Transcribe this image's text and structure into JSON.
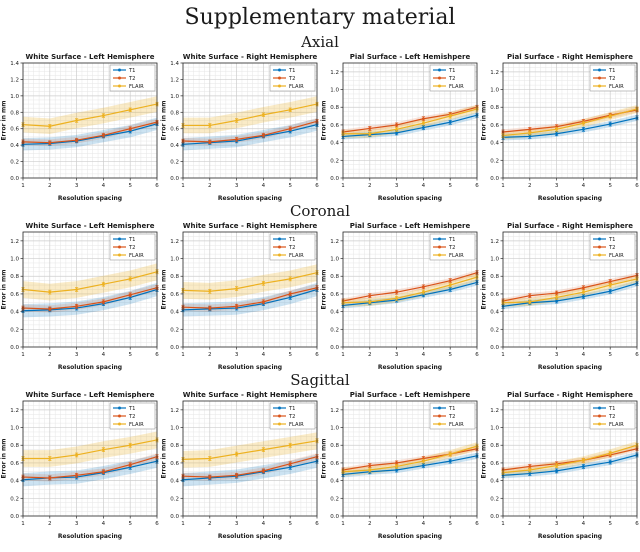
{
  "title": "Supplementary material",
  "rows": [
    {
      "label": "Axial"
    },
    {
      "label": "Coronal"
    },
    {
      "label": "Sagittal"
    }
  ],
  "legend": [
    "T1",
    "T2",
    "FLAIR"
  ],
  "colors": {
    "T1": "#0072BD",
    "T2": "#D95319",
    "FLAIR": "#EDB120"
  },
  "grid_colors": {
    "minor": "#e6e6e6",
    "major": "#cdcdcd",
    "spine": "#2b2b2b"
  },
  "axis": {
    "xlabel": "Resolution spacing",
    "ylabel": "Error in mm",
    "x_ticks": [
      1,
      2,
      3,
      4,
      5,
      6
    ],
    "ytick_step": 0.2
  },
  "chart_data": [
    {
      "type": "line",
      "row": 0,
      "col": 0,
      "title": "White Surface - Left Hemisphere",
      "xlabel": "Resolution spacing",
      "ylabel": "Error in mm",
      "x": [
        1,
        2,
        3,
        4,
        5,
        6
      ],
      "ylim": [
        0,
        1.4
      ],
      "series": [
        {
          "name": "T1",
          "values": [
            0.41,
            0.42,
            0.45,
            0.51,
            0.57,
            0.66
          ],
          "band": 0.075
        },
        {
          "name": "T2",
          "values": [
            0.44,
            0.43,
            0.46,
            0.52,
            0.6,
            0.68
          ],
          "band": 0.04
        },
        {
          "name": "FLAIR",
          "values": [
            0.65,
            0.63,
            0.7,
            0.76,
            0.83,
            0.9
          ],
          "band": 0.095
        }
      ]
    },
    {
      "type": "line",
      "row": 0,
      "col": 1,
      "title": "White Surface - Right Hemisphere",
      "xlabel": "Resolution spacing",
      "ylabel": "Error in mm",
      "x": [
        1,
        2,
        3,
        4,
        5,
        6
      ],
      "ylim": [
        0,
        1.4
      ],
      "series": [
        {
          "name": "T1",
          "values": [
            0.41,
            0.43,
            0.45,
            0.51,
            0.57,
            0.65
          ],
          "band": 0.075
        },
        {
          "name": "T2",
          "values": [
            0.45,
            0.44,
            0.47,
            0.52,
            0.6,
            0.69
          ],
          "band": 0.04
        },
        {
          "name": "FLAIR",
          "values": [
            0.64,
            0.64,
            0.7,
            0.77,
            0.83,
            0.9
          ],
          "band": 0.095
        }
      ]
    },
    {
      "type": "line",
      "row": 0,
      "col": 2,
      "title": "Pial Surface - Left Hemishpere",
      "xlabel": "Resolution spacing",
      "ylabel": "Error in mm",
      "x": [
        1,
        2,
        3,
        4,
        5,
        6
      ],
      "ylim": [
        0,
        1.3
      ],
      "series": [
        {
          "name": "T1",
          "values": [
            0.47,
            0.49,
            0.51,
            0.57,
            0.63,
            0.71
          ],
          "band": 0.035
        },
        {
          "name": "T2",
          "values": [
            0.52,
            0.56,
            0.6,
            0.67,
            0.72,
            0.8
          ],
          "band": 0.03
        },
        {
          "name": "FLAIR",
          "values": [
            0.5,
            0.5,
            0.55,
            0.62,
            0.7,
            0.78
          ],
          "band": 0.045
        }
      ]
    },
    {
      "type": "line",
      "row": 0,
      "col": 3,
      "title": "Pial Surface - Right Hemisphere",
      "xlabel": "Resolution spacing",
      "ylabel": "Error in mm",
      "x": [
        1,
        2,
        3,
        4,
        5,
        6
      ],
      "ylim": [
        0,
        1.3
      ],
      "series": [
        {
          "name": "T1",
          "values": [
            0.46,
            0.47,
            0.5,
            0.55,
            0.61,
            0.68
          ],
          "band": 0.035
        },
        {
          "name": "T2",
          "values": [
            0.52,
            0.55,
            0.58,
            0.64,
            0.71,
            0.77
          ],
          "band": 0.03
        },
        {
          "name": "FLAIR",
          "values": [
            0.48,
            0.51,
            0.55,
            0.62,
            0.7,
            0.78
          ],
          "band": 0.045
        }
      ]
    },
    {
      "type": "line",
      "row": 1,
      "col": 0,
      "title": "White Surface - Left Hemisphere",
      "xlabel": "Resolution spacing",
      "ylabel": "Error in mm",
      "x": [
        1,
        2,
        3,
        4,
        5,
        6
      ],
      "ylim": [
        0,
        1.3
      ],
      "series": [
        {
          "name": "T1",
          "values": [
            0.41,
            0.42,
            0.44,
            0.49,
            0.56,
            0.65
          ],
          "band": 0.075
        },
        {
          "name": "T2",
          "values": [
            0.44,
            0.43,
            0.46,
            0.51,
            0.59,
            0.67
          ],
          "band": 0.04
        },
        {
          "name": "FLAIR",
          "values": [
            0.65,
            0.62,
            0.65,
            0.71,
            0.77,
            0.85
          ],
          "band": 0.095
        }
      ]
    },
    {
      "type": "line",
      "row": 1,
      "col": 1,
      "title": "White Surface - Right Hemisphere",
      "xlabel": "Resolution spacing",
      "ylabel": "Error in mm",
      "x": [
        1,
        2,
        3,
        4,
        5,
        6
      ],
      "ylim": [
        0,
        1.3
      ],
      "series": [
        {
          "name": "T1",
          "values": [
            0.42,
            0.43,
            0.44,
            0.49,
            0.56,
            0.65
          ],
          "band": 0.075
        },
        {
          "name": "T2",
          "values": [
            0.45,
            0.44,
            0.46,
            0.51,
            0.6,
            0.67
          ],
          "band": 0.04
        },
        {
          "name": "FLAIR",
          "values": [
            0.64,
            0.63,
            0.66,
            0.72,
            0.77,
            0.84
          ],
          "band": 0.095
        }
      ]
    },
    {
      "type": "line",
      "row": 1,
      "col": 2,
      "title": "Pial Surface - Left Hemishpere",
      "xlabel": "Resolution spacing",
      "ylabel": "Error in mm",
      "x": [
        1,
        2,
        3,
        4,
        5,
        6
      ],
      "ylim": [
        0,
        1.3
      ],
      "series": [
        {
          "name": "T1",
          "values": [
            0.47,
            0.5,
            0.53,
            0.59,
            0.65,
            0.73
          ],
          "band": 0.035
        },
        {
          "name": "T2",
          "values": [
            0.52,
            0.58,
            0.62,
            0.68,
            0.75,
            0.84
          ],
          "band": 0.03
        },
        {
          "name": "FLAIR",
          "values": [
            0.5,
            0.51,
            0.55,
            0.62,
            0.7,
            0.79
          ],
          "band": 0.045
        }
      ]
    },
    {
      "type": "line",
      "row": 1,
      "col": 3,
      "title": "Pial Surface - Right Hemisphere",
      "xlabel": "Resolution spacing",
      "ylabel": "Error in mm",
      "x": [
        1,
        2,
        3,
        4,
        5,
        6
      ],
      "ylim": [
        0,
        1.3
      ],
      "series": [
        {
          "name": "T1",
          "values": [
            0.46,
            0.5,
            0.52,
            0.57,
            0.63,
            0.72
          ],
          "band": 0.035
        },
        {
          "name": "T2",
          "values": [
            0.52,
            0.58,
            0.61,
            0.67,
            0.74,
            0.81
          ],
          "band": 0.03
        },
        {
          "name": "FLAIR",
          "values": [
            0.5,
            0.51,
            0.56,
            0.62,
            0.7,
            0.77
          ],
          "band": 0.045
        }
      ]
    },
    {
      "type": "line",
      "row": 2,
      "col": 0,
      "title": "White Surface - Left Hemisphere",
      "xlabel": "Resolution spacing",
      "ylabel": "Error in mm",
      "x": [
        1,
        2,
        3,
        4,
        5,
        6
      ],
      "ylim": [
        0,
        1.3
      ],
      "series": [
        {
          "name": "T1",
          "values": [
            0.41,
            0.43,
            0.44,
            0.49,
            0.55,
            0.62
          ],
          "band": 0.075
        },
        {
          "name": "T2",
          "values": [
            0.44,
            0.43,
            0.46,
            0.5,
            0.58,
            0.67
          ],
          "band": 0.04
        },
        {
          "name": "FLAIR",
          "values": [
            0.65,
            0.65,
            0.69,
            0.75,
            0.8,
            0.86
          ],
          "band": 0.095
        }
      ]
    },
    {
      "type": "line",
      "row": 2,
      "col": 1,
      "title": "White Surface - Right Hemisphere",
      "xlabel": "Resolution spacing",
      "ylabel": "Error in mm",
      "x": [
        1,
        2,
        3,
        4,
        5,
        6
      ],
      "ylim": [
        0,
        1.3
      ],
      "series": [
        {
          "name": "T1",
          "values": [
            0.41,
            0.43,
            0.45,
            0.5,
            0.55,
            0.62
          ],
          "band": 0.075
        },
        {
          "name": "T2",
          "values": [
            0.45,
            0.44,
            0.46,
            0.51,
            0.59,
            0.67
          ],
          "band": 0.04
        },
        {
          "name": "FLAIR",
          "values": [
            0.64,
            0.65,
            0.7,
            0.75,
            0.8,
            0.85
          ],
          "band": 0.095
        }
      ]
    },
    {
      "type": "line",
      "row": 2,
      "col": 2,
      "title": "Pial Surface - Left Hemishpere",
      "xlabel": "Resolution spacing",
      "ylabel": "Error in mm",
      "x": [
        1,
        2,
        3,
        4,
        5,
        6
      ],
      "ylim": [
        0,
        1.3
      ],
      "series": [
        {
          "name": "T1",
          "values": [
            0.47,
            0.5,
            0.52,
            0.57,
            0.62,
            0.68
          ],
          "band": 0.035
        },
        {
          "name": "T2",
          "values": [
            0.52,
            0.57,
            0.6,
            0.65,
            0.7,
            0.76
          ],
          "band": 0.03
        },
        {
          "name": "FLAIR",
          "values": [
            0.5,
            0.52,
            0.56,
            0.62,
            0.7,
            0.79
          ],
          "band": 0.045
        }
      ]
    },
    {
      "type": "line",
      "row": 2,
      "col": 3,
      "title": "Pial Surface - Right Hemisphere",
      "xlabel": "Resolution spacing",
      "ylabel": "Error in mm",
      "x": [
        1,
        2,
        3,
        4,
        5,
        6
      ],
      "ylim": [
        0,
        1.3
      ],
      "series": [
        {
          "name": "T1",
          "values": [
            0.46,
            0.48,
            0.51,
            0.56,
            0.61,
            0.69
          ],
          "band": 0.035
        },
        {
          "name": "T2",
          "values": [
            0.52,
            0.56,
            0.59,
            0.63,
            0.69,
            0.76
          ],
          "band": 0.03
        },
        {
          "name": "FLAIR",
          "values": [
            0.49,
            0.52,
            0.57,
            0.63,
            0.71,
            0.8
          ],
          "band": 0.045
        }
      ]
    }
  ]
}
